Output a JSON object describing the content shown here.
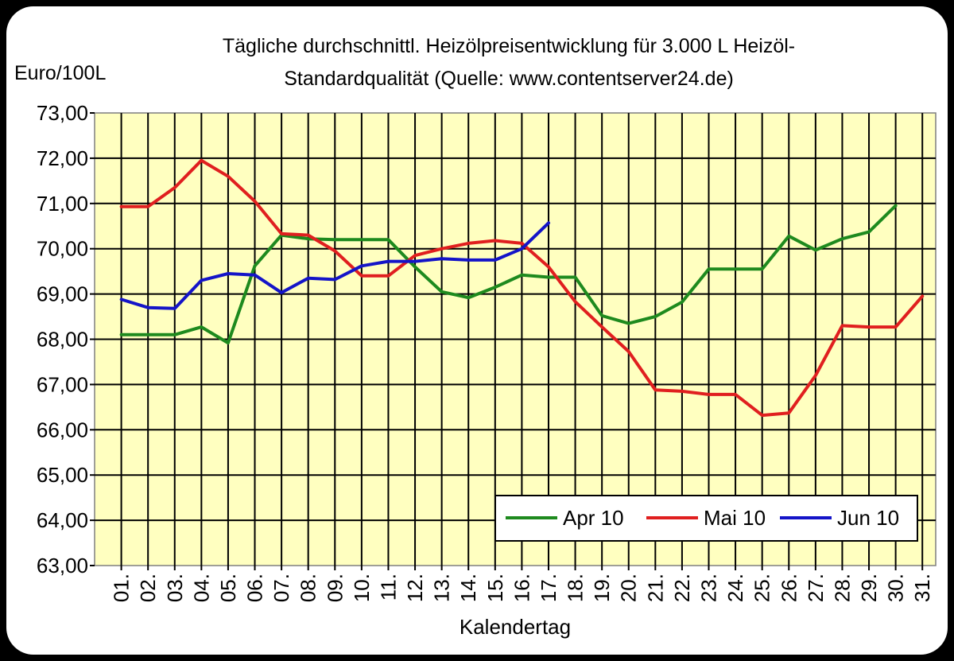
{
  "chart_data": {
    "type": "line",
    "title_line1": "Tägliche durchschnittl. Heizölpreisentwicklung für 3.000 L Heizöl-",
    "title_line2": "Standardqualität (Quelle: www.contentserver24.de)",
    "ylabel": "Euro/100L",
    "xlabel": "Kalendertag",
    "ylim": [
      63,
      73
    ],
    "yticks": [
      "63,00",
      "64,00",
      "65,00",
      "66,00",
      "67,00",
      "68,00",
      "69,00",
      "70,00",
      "71,00",
      "72,00",
      "73,00"
    ],
    "categories": [
      "01.",
      "02.",
      "03.",
      "04.",
      "05.",
      "06.",
      "07.",
      "08.",
      "09.",
      "10.",
      "11.",
      "12.",
      "13.",
      "14.",
      "15.",
      "16.",
      "17.",
      "18.",
      "19.",
      "20.",
      "21.",
      "22.",
      "23.",
      "24.",
      "25.",
      "26.",
      "27.",
      "28.",
      "29.",
      "30.",
      "31."
    ],
    "grid": true,
    "plot_background": "#ffffc0",
    "legend_position": "bottom-right",
    "series": [
      {
        "name": "Apr 10",
        "color": "#1e8a1e",
        "values": [
          68.1,
          68.1,
          68.1,
          68.27,
          67.92,
          69.62,
          70.3,
          70.22,
          70.2,
          70.2,
          70.2,
          69.6,
          69.05,
          68.92,
          69.15,
          69.42,
          69.37,
          69.37,
          68.52,
          68.35,
          68.5,
          68.82,
          69.55,
          69.55,
          69.55,
          70.28,
          69.97,
          70.22,
          70.37,
          70.95,
          null
        ]
      },
      {
        "name": "Mai 10",
        "color": "#e01f1f",
        "values": [
          70.93,
          70.93,
          71.35,
          71.95,
          71.6,
          71.05,
          70.33,
          70.3,
          69.95,
          69.4,
          69.4,
          69.85,
          70.0,
          70.12,
          70.18,
          70.12,
          69.6,
          68.83,
          68.27,
          67.73,
          66.88,
          66.85,
          66.78,
          66.78,
          66.32,
          66.37,
          67.2,
          68.3,
          68.27,
          68.27,
          68.95
        ]
      },
      {
        "name": "Jun 10",
        "color": "#1414c8",
        "values": [
          68.88,
          68.7,
          68.68,
          69.3,
          69.45,
          69.42,
          69.03,
          69.35,
          69.32,
          69.62,
          69.72,
          69.72,
          69.78,
          69.75,
          69.75,
          70.0,
          70.57,
          null,
          null,
          null,
          null,
          null,
          null,
          null,
          null,
          null,
          null,
          null,
          null,
          null,
          null
        ]
      }
    ]
  }
}
